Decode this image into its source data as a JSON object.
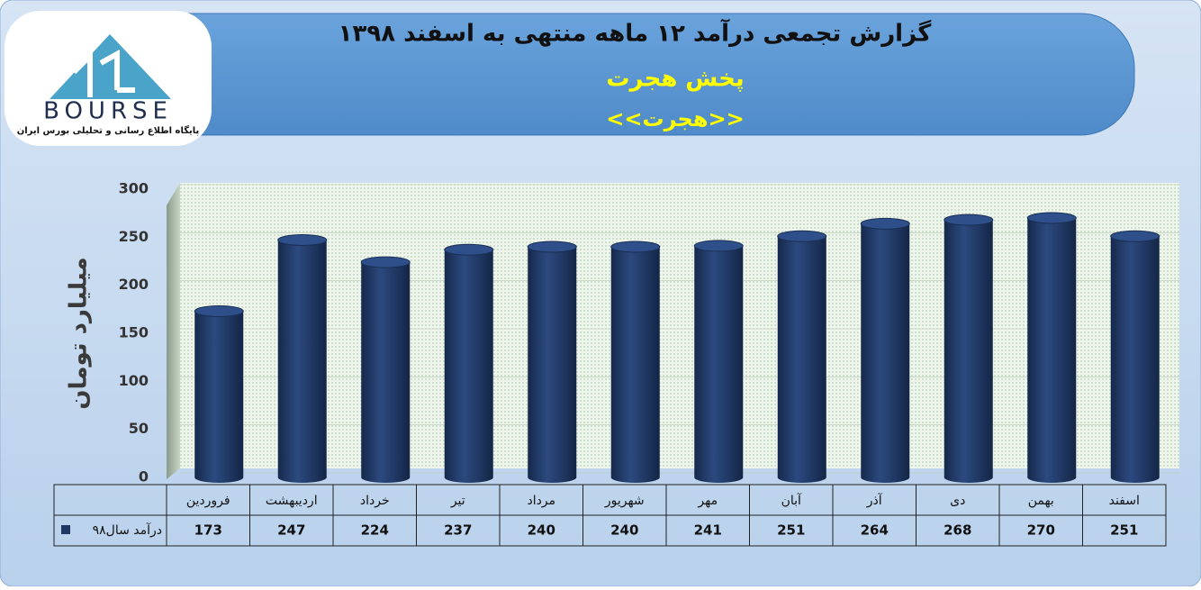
{
  "logo": {
    "text": "BOURSE",
    "tagline": "پایگاه اطلاع رسانی و تحلیلی بورس ایران"
  },
  "chart_data": {
    "type": "bar",
    "title": "گزارش تجمعی درآمد ۱۲ ماهه منتهی به اسفند ۱۳۹۸",
    "subtitle": "پخش هجرت",
    "subtitle2": "<<هجرت>>",
    "y_label": "میلیارد تومان",
    "categories": [
      "فروردین",
      "اردیبهشت",
      "خرداد",
      "تیر",
      "مرداد",
      "شهریور",
      "مهر",
      "آبان",
      "آذر",
      "دی",
      "بهمن",
      "اسفند"
    ],
    "series": [
      {
        "name": "درآمد سال۹۸",
        "color": "#1f3864",
        "values": [
          173,
          247,
          224,
          237,
          240,
          240,
          241,
          251,
          264,
          268,
          270,
          251
        ]
      }
    ],
    "ylim": [
      0,
      300
    ],
    "yticks": [
      0,
      50,
      100,
      150,
      200,
      250,
      300
    ],
    "grid": true
  }
}
